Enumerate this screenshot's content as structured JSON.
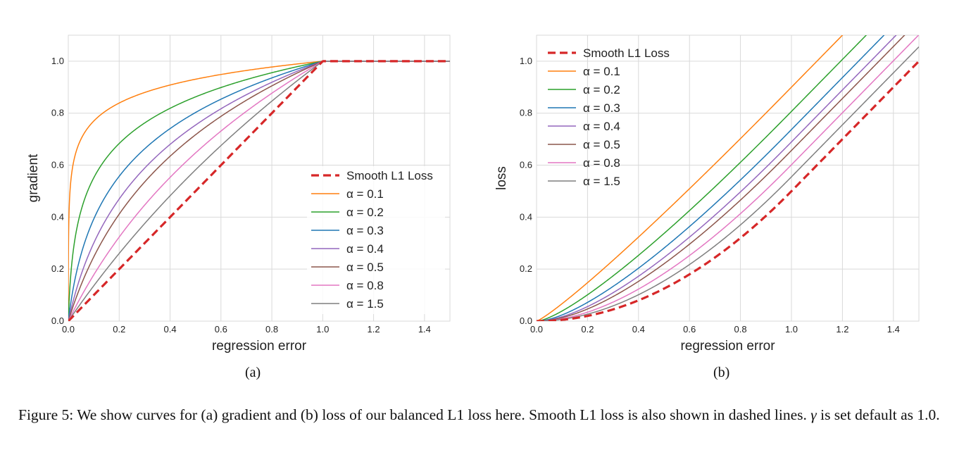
{
  "figure_caption": {
    "prefix": "Figure 5: We show curves for (a) gradient and (b) loss of our balanced L1 loss here. Smooth L1 loss is also shown in dashed lines. ",
    "symbol": "γ",
    "suffix": " is set default as 1.0."
  },
  "colors": {
    "smooth": "#d62728",
    "a01": "#ff7f0e",
    "a02": "#2ca02c",
    "a03": "#1f77b4",
    "a04": "#9467bd",
    "a05": "#8c564b",
    "a08": "#e377c2",
    "a15": "#7f7f7f",
    "grid": "#d9d9d9"
  },
  "chart_data": [
    {
      "id": "a",
      "type": "line",
      "sublabel": "(a)",
      "function": "gradient",
      "xlabel": "regression error",
      "ylabel": "gradient",
      "xlim": [
        0,
        1.5
      ],
      "ylim": [
        0,
        1.1
      ],
      "xticks": [
        "0.0",
        "0.2",
        "0.4",
        "0.6",
        "0.8",
        "1.0",
        "1.2",
        "1.4"
      ],
      "yticks": [
        "0.0",
        "0.2",
        "0.4",
        "0.6",
        "0.8",
        "1.0"
      ],
      "legend_position": "center-right",
      "series": [
        {
          "name": "Smooth L1 Loss",
          "label": "Smooth L1 Loss",
          "alpha": null,
          "style": "dashed",
          "color_key": "smooth"
        },
        {
          "name": "alpha=0.1",
          "label": "α = 0.1",
          "alpha": 0.1,
          "style": "solid",
          "color_key": "a01"
        },
        {
          "name": "alpha=0.2",
          "label": "α = 0.2",
          "alpha": 0.2,
          "style": "solid",
          "color_key": "a02"
        },
        {
          "name": "alpha=0.3",
          "label": "α = 0.3",
          "alpha": 0.3,
          "style": "solid",
          "color_key": "a03"
        },
        {
          "name": "alpha=0.4",
          "label": "α = 0.4",
          "alpha": 0.4,
          "style": "solid",
          "color_key": "a04"
        },
        {
          "name": "alpha=0.5",
          "label": "α = 0.5",
          "alpha": 0.5,
          "style": "solid",
          "color_key": "a05"
        },
        {
          "name": "alpha=0.8",
          "label": "α = 0.8",
          "alpha": 0.8,
          "style": "solid",
          "color_key": "a08"
        },
        {
          "name": "alpha=1.5",
          "label": "α = 1.5",
          "alpha": 1.5,
          "style": "solid",
          "color_key": "a15"
        }
      ]
    },
    {
      "id": "b",
      "type": "line",
      "sublabel": "(b)",
      "function": "loss",
      "xlabel": "regression error",
      "ylabel": "loss",
      "xlim": [
        0,
        1.5
      ],
      "ylim": [
        0,
        1.1
      ],
      "xticks": [
        "0.0",
        "0.2",
        "0.4",
        "0.6",
        "0.8",
        "1.0",
        "1.2",
        "1.4"
      ],
      "yticks": [
        "0.0",
        "0.2",
        "0.4",
        "0.6",
        "0.8",
        "1.0"
      ],
      "legend_position": "top-left",
      "series": [
        {
          "name": "Smooth L1 Loss",
          "label": "Smooth L1 Loss",
          "alpha": null,
          "style": "dashed",
          "color_key": "smooth"
        },
        {
          "name": "alpha=0.1",
          "label": "α = 0.1",
          "alpha": 0.1,
          "style": "solid",
          "color_key": "a01"
        },
        {
          "name": "alpha=0.2",
          "label": "α = 0.2",
          "alpha": 0.2,
          "style": "solid",
          "color_key": "a02"
        },
        {
          "name": "alpha=0.3",
          "label": "α = 0.3",
          "alpha": 0.3,
          "style": "solid",
          "color_key": "a03"
        },
        {
          "name": "alpha=0.4",
          "label": "α = 0.4",
          "alpha": 0.4,
          "style": "solid",
          "color_key": "a04"
        },
        {
          "name": "alpha=0.5",
          "label": "α = 0.5",
          "alpha": 0.5,
          "style": "solid",
          "color_key": "a05"
        },
        {
          "name": "alpha=0.8",
          "label": "α = 0.8",
          "alpha": 0.8,
          "style": "solid",
          "color_key": "a08"
        },
        {
          "name": "alpha=1.5",
          "label": "α = 1.5",
          "alpha": 1.5,
          "style": "solid",
          "color_key": "a15"
        }
      ]
    }
  ]
}
